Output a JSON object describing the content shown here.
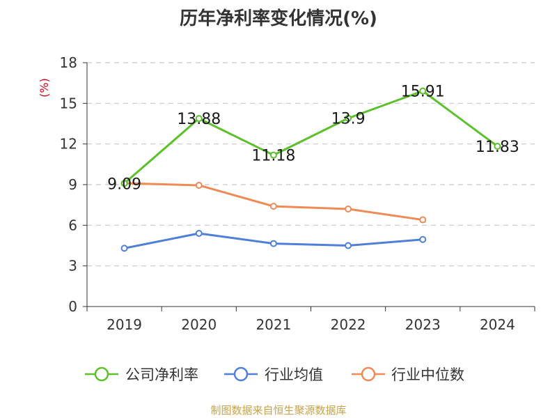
{
  "chart_data": {
    "type": "line",
    "title": "历年净利率变化情况(%)",
    "ylabel": "(%)",
    "xlabel": "",
    "categories": [
      "2019",
      "2020",
      "2021",
      "2022",
      "2023",
      "2024"
    ],
    "ylim": [
      0,
      18
    ],
    "yticks": [
      0,
      3,
      6,
      9,
      12,
      15,
      18
    ],
    "grid": true,
    "legend": "bottom",
    "series": [
      {
        "name": "公司净利率",
        "color": "#5bc12a",
        "values": [
          9.09,
          13.88,
          11.18,
          13.9,
          15.91,
          11.83
        ],
        "labels": [
          "9.09",
          "13.88",
          "11.18",
          "13.9",
          "15.91",
          "11.83"
        ]
      },
      {
        "name": "行业均值",
        "color": "#4f7fd8",
        "values": [
          4.3,
          5.4,
          4.65,
          4.5,
          4.95,
          null
        ]
      },
      {
        "name": "行业中位数",
        "color": "#f08a55",
        "values": [
          9.1,
          8.95,
          7.4,
          7.2,
          6.4,
          null
        ]
      }
    ]
  },
  "source": "制图数据来自恒生聚源数据库"
}
